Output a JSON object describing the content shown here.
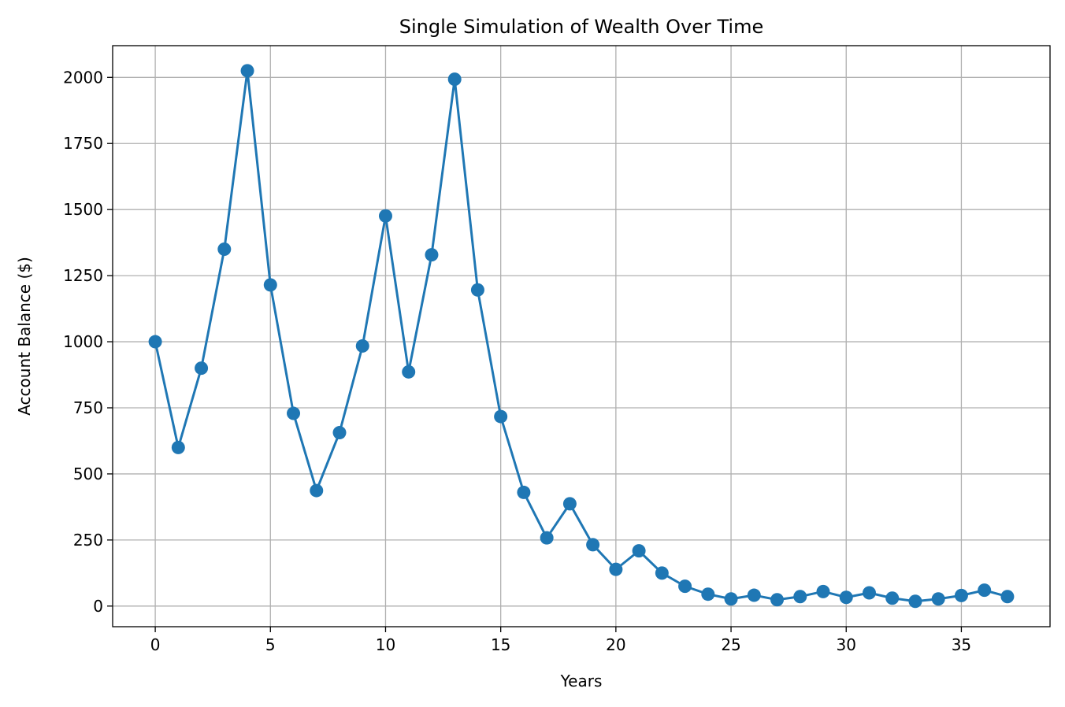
{
  "chart_data": {
    "type": "line",
    "title": "Single Simulation of Wealth Over Time",
    "xlabel": "Years",
    "ylabel": "Account Balance ($)",
    "xlim": [
      -1.85,
      38.85
    ],
    "ylim": [
      -78,
      2120
    ],
    "xticks": [
      0,
      5,
      10,
      15,
      20,
      25,
      30,
      35
    ],
    "yticks": [
      0,
      250,
      500,
      750,
      1000,
      1250,
      1500,
      1750,
      2000
    ],
    "grid": true,
    "legend": "none",
    "colors": {
      "line": "#1f77b4",
      "grid": "#b0b0b0",
      "axes": "#000000"
    },
    "series": [
      {
        "marker": "circle",
        "x": [
          0,
          1,
          2,
          3,
          4,
          5,
          6,
          7,
          8,
          9,
          10,
          11,
          12,
          13,
          14,
          15,
          16,
          17,
          18,
          19,
          20,
          21,
          22,
          23,
          24,
          25,
          26,
          27,
          28,
          29,
          30,
          31,
          32,
          33,
          34,
          35,
          36,
          37
        ],
        "values": [
          1000,
          600,
          900,
          1350,
          2025,
          1215,
          729,
          437,
          656,
          984,
          1476,
          886,
          1329,
          1993,
          1196,
          717,
          430,
          258,
          387,
          232,
          139,
          209,
          125,
          75,
          45,
          27,
          41,
          24,
          36,
          55,
          33,
          50,
          30,
          18,
          27,
          40,
          60,
          36
        ]
      }
    ]
  }
}
